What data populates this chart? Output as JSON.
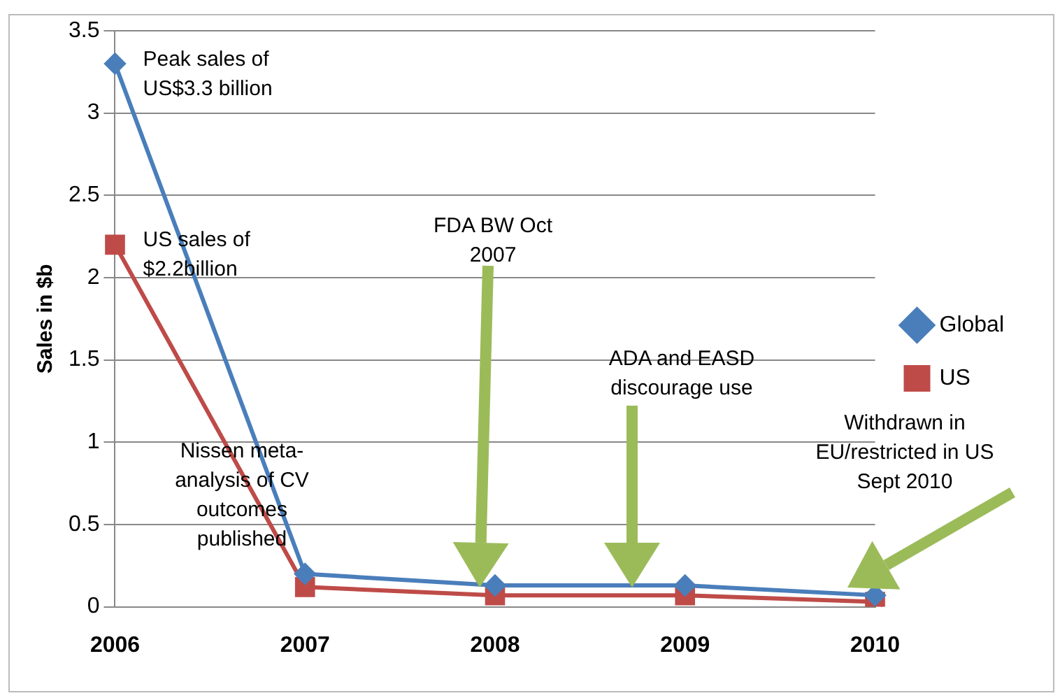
{
  "chart_data": {
    "type": "line",
    "ylabel": "Sales in $b",
    "categories": [
      "2006",
      "2007",
      "2008",
      "2009",
      "2010"
    ],
    "series": [
      {
        "name": "Global",
        "color": "#4a7ebb",
        "marker": "diamond",
        "values": [
          3.3,
          0.2,
          0.13,
          0.13,
          0.07
        ]
      },
      {
        "name": "US",
        "color": "#be4b48",
        "marker": "square",
        "values": [
          2.2,
          0.12,
          0.07,
          0.07,
          0.03
        ]
      }
    ],
    "ylim": [
      0,
      3.5
    ],
    "yticks": [
      0,
      0.5,
      1,
      1.5,
      2,
      2.5,
      3,
      3.5
    ],
    "grid": "y",
    "legend": "right",
    "annotations": [
      {
        "text": "Peak sales of US$3.3 billion",
        "x": "2006",
        "y": 3.3
      },
      {
        "text": "US sales of $2.2billion",
        "x": "2006",
        "y": 2.2
      },
      "Nissen meta-analysis of CV outcomes published",
      "FDA BW Oct 2007",
      "ADA and EASD discourage use",
      "Withdrawn in EU/restricted in US Sept 2010"
    ]
  }
}
